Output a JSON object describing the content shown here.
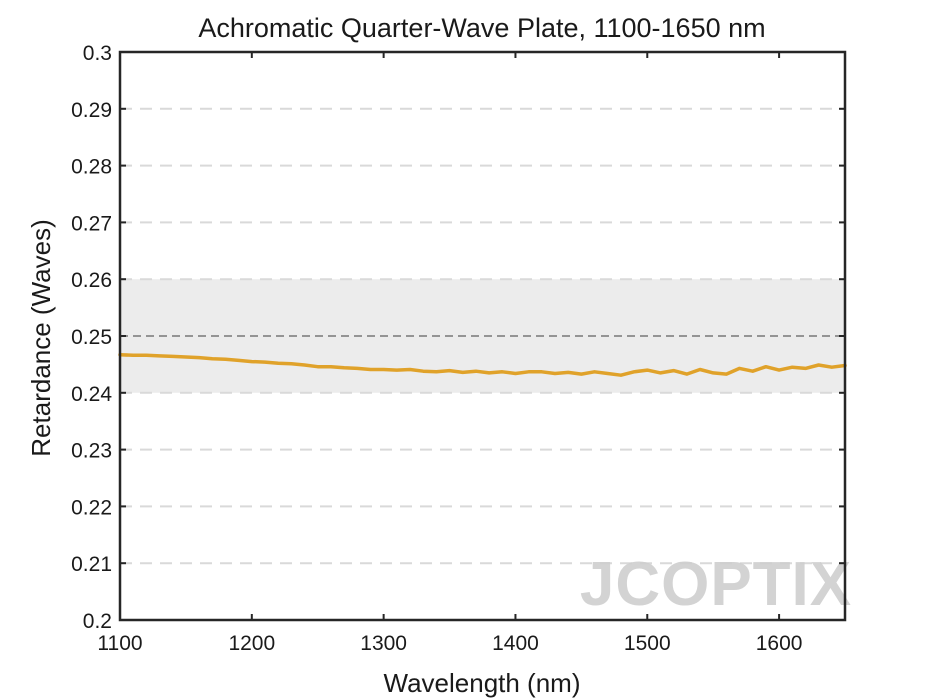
{
  "chart_data": {
    "type": "line",
    "title": "Achromatic Quarter-Wave Plate, 1100-1650 nm",
    "xlabel": "Wavelength (nm)",
    "ylabel": "Retardance (Waves)",
    "xlim": [
      1100,
      1650
    ],
    "ylim": [
      0.2,
      0.3
    ],
    "xticks": [
      1100,
      1200,
      1300,
      1400,
      1500,
      1600
    ],
    "yticks": [
      0.2,
      0.21,
      0.22,
      0.23,
      0.24,
      0.25,
      0.26,
      0.27,
      0.28,
      0.29,
      0.3
    ],
    "ytick_labels": [
      "0.2",
      "0.21",
      "0.22",
      "0.23",
      "0.24",
      "0.25",
      "0.26",
      "0.27",
      "0.28",
      "0.29",
      "0.3"
    ],
    "grid": "horizontal dashed",
    "tolerance_band": [
      0.24,
      0.26
    ],
    "reference_line": 0.25,
    "series": [
      {
        "color": "#e0a22a",
        "x": [
          1100,
          1110,
          1120,
          1130,
          1140,
          1150,
          1160,
          1170,
          1180,
          1190,
          1200,
          1210,
          1220,
          1230,
          1240,
          1250,
          1260,
          1270,
          1280,
          1290,
          1300,
          1310,
          1320,
          1330,
          1340,
          1350,
          1360,
          1370,
          1380,
          1390,
          1400,
          1410,
          1420,
          1430,
          1440,
          1450,
          1460,
          1470,
          1480,
          1490,
          1500,
          1510,
          1520,
          1530,
          1540,
          1550,
          1560,
          1570,
          1580,
          1590,
          1600,
          1610,
          1620,
          1630,
          1640,
          1650
        ],
        "y": [
          0.2467,
          0.2466,
          0.2466,
          0.2465,
          0.2464,
          0.2463,
          0.2462,
          0.246,
          0.2459,
          0.2457,
          0.2455,
          0.2454,
          0.2452,
          0.2451,
          0.2449,
          0.2446,
          0.2446,
          0.2444,
          0.2443,
          0.2441,
          0.2441,
          0.244,
          0.2441,
          0.2438,
          0.2437,
          0.2439,
          0.2436,
          0.2438,
          0.2435,
          0.2437,
          0.2434,
          0.2437,
          0.2437,
          0.2434,
          0.2436,
          0.2433,
          0.2437,
          0.2434,
          0.2431,
          0.2437,
          0.244,
          0.2435,
          0.2439,
          0.2433,
          0.2441,
          0.2435,
          0.2433,
          0.2443,
          0.2438,
          0.2446,
          0.244,
          0.2445,
          0.2443,
          0.2449,
          0.2445,
          0.2448
        ]
      }
    ]
  },
  "watermark": {
    "text": "JCOPTIX"
  },
  "colors": {
    "band": "#ececec",
    "grid": "#d9d9d9",
    "reference": "#777777",
    "axis": "#262626"
  }
}
